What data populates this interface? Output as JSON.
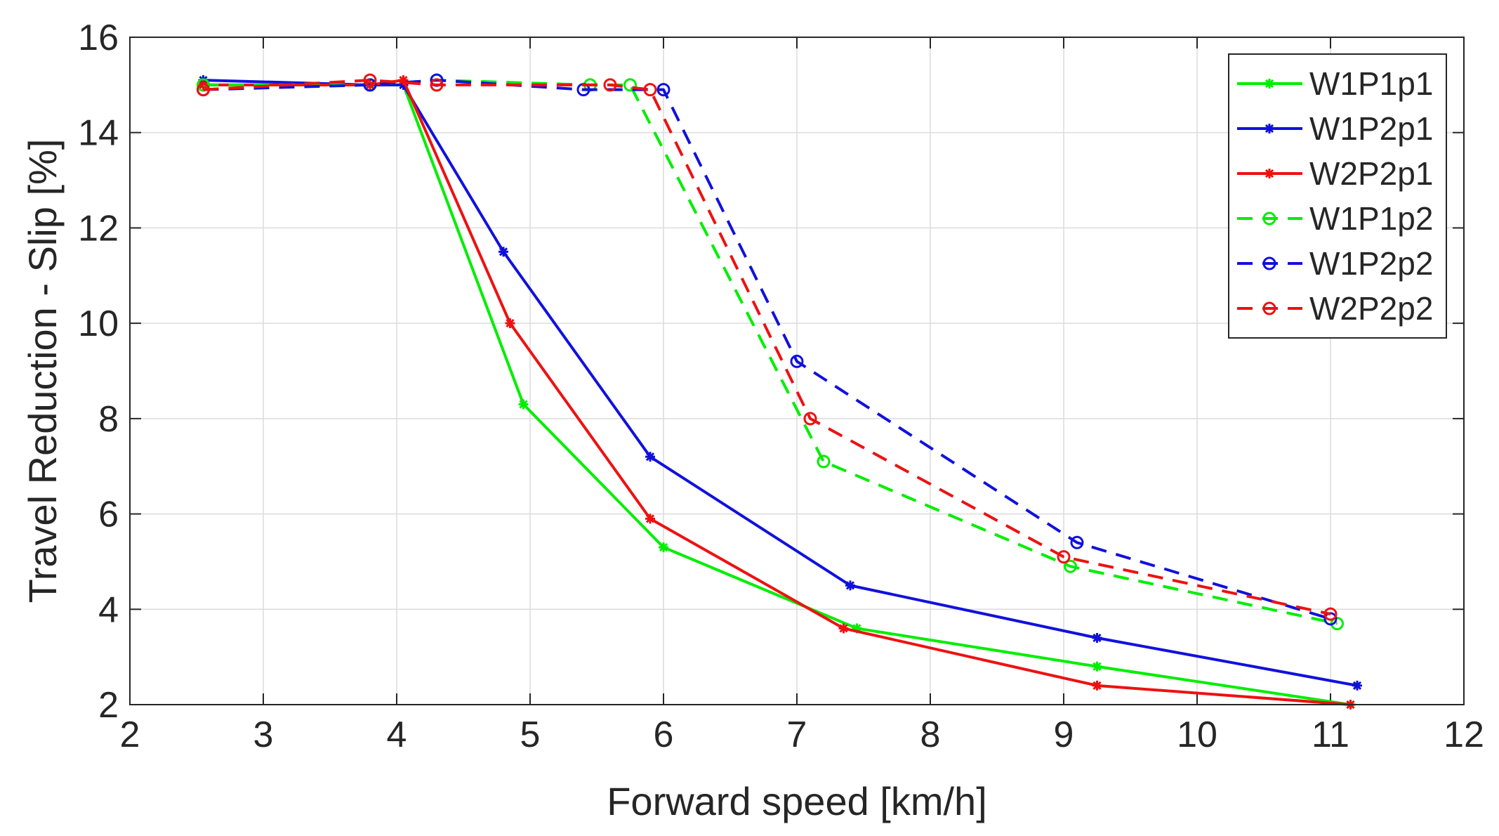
{
  "chart_data": {
    "type": "line",
    "title": "",
    "xlabel": "Forward speed [km/h]",
    "ylabel": "Travel Reduction - Slip [%]",
    "xlim": [
      2,
      12
    ],
    "ylim": [
      2,
      16
    ],
    "xticks": [
      "2",
      "3",
      "4",
      "5",
      "6",
      "7",
      "8",
      "9",
      "10",
      "11",
      "12"
    ],
    "yticks": [
      "2",
      "4",
      "6",
      "8",
      "10",
      "12",
      "14",
      "16"
    ],
    "grid": true,
    "legend_position": "top-right",
    "series": [
      {
        "name": "W1P1p1",
        "color": "#00ee00",
        "style": "solid",
        "marker": "asterisk",
        "x": [
          2.55,
          3.8,
          4.05,
          4.95,
          6.0,
          7.45,
          9.25,
          11.15
        ],
        "y": [
          15.0,
          15.0,
          15.0,
          8.3,
          5.3,
          3.6,
          2.8,
          2.0
        ]
      },
      {
        "name": "W1P2p1",
        "color": "#1111dd",
        "style": "solid",
        "marker": "asterisk",
        "x": [
          2.55,
          3.8,
          4.05,
          4.8,
          5.9,
          7.4,
          9.25,
          11.2
        ],
        "y": [
          15.1,
          15.0,
          15.0,
          11.5,
          7.2,
          4.5,
          3.4,
          2.4
        ]
      },
      {
        "name": "W2P2p1",
        "color": "#ee1111",
        "style": "solid",
        "marker": "asterisk",
        "x": [
          2.55,
          3.8,
          4.05,
          4.85,
          5.9,
          7.35,
          9.25,
          11.15
        ],
        "y": [
          15.0,
          15.0,
          15.1,
          10.0,
          5.9,
          3.6,
          2.4,
          2.0
        ]
      },
      {
        "name": "W1P1p2",
        "color": "#00ee00",
        "style": "dashed",
        "marker": "circle",
        "x": [
          2.55,
          3.8,
          4.3,
          5.45,
          5.75,
          7.2,
          9.05,
          11.05
        ],
        "y": [
          15.0,
          15.0,
          15.1,
          15.0,
          15.0,
          7.1,
          4.9,
          3.7
        ]
      },
      {
        "name": "W1P2p2",
        "color": "#1111dd",
        "style": "dashed",
        "marker": "circle",
        "x": [
          2.55,
          3.8,
          4.3,
          5.4,
          6.0,
          7.0,
          9.1,
          11.0
        ],
        "y": [
          14.9,
          15.0,
          15.1,
          14.9,
          14.9,
          9.2,
          5.4,
          3.8
        ]
      },
      {
        "name": "W2P2p2",
        "color": "#ee1111",
        "style": "dashed",
        "marker": "circle",
        "x": [
          2.55,
          3.8,
          4.3,
          5.6,
          5.9,
          7.1,
          9.0,
          11.0
        ],
        "y": [
          14.9,
          15.1,
          15.0,
          15.0,
          14.9,
          8.0,
          5.1,
          3.9
        ]
      }
    ]
  }
}
